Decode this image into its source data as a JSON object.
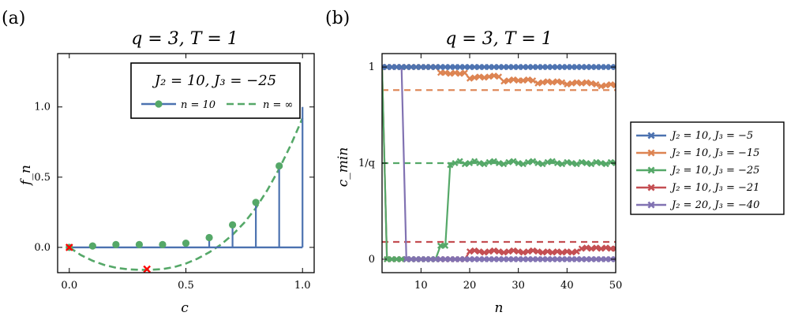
{
  "chart_data": [
    {
      "panel": "(a)",
      "type": "line",
      "title": "q = 3,  T = 1",
      "xlabel": "c",
      "ylabel": "f_n",
      "xlim": [
        -0.05,
        1.05
      ],
      "ylim": [
        -0.18,
        1.38
      ],
      "xticks": [
        "0.0",
        "0.5",
        "1.0"
      ],
      "yticks": [
        "0.0",
        "0.5",
        "1.0"
      ],
      "legend_title": "J₂ = 10,  J₃ = −25",
      "legend_position": "top-right",
      "series": [
        {
          "name": "n = 10",
          "style": "stem",
          "color": "#4C72B0",
          "marker_color": "#55A868",
          "x": [
            0.0,
            0.1,
            0.2,
            0.3,
            0.4,
            0.5,
            0.6,
            0.7,
            0.8,
            0.9,
            1.0
          ],
          "y": [
            0.0,
            0.01,
            0.02,
            0.02,
            0.02,
            0.03,
            0.07,
            0.16,
            0.32,
            0.58,
            1.0
          ]
        },
        {
          "name": "n = ∞",
          "style": "dashed",
          "color": "#55A868",
          "x": [
            0.0,
            0.05,
            0.1,
            0.15,
            0.2,
            0.25,
            0.3,
            0.333,
            0.4,
            0.45,
            0.5,
            0.55,
            0.6,
            0.65,
            0.7,
            0.75,
            0.8,
            0.85,
            0.9,
            0.95,
            1.0
          ],
          "y": [
            0.0,
            -0.055,
            -0.095,
            -0.125,
            -0.145,
            -0.156,
            -0.16,
            -0.161,
            -0.155,
            -0.14,
            -0.115,
            -0.08,
            -0.035,
            0.02,
            0.09,
            0.175,
            0.28,
            0.41,
            0.56,
            0.73,
            0.92
          ]
        }
      ],
      "markers": {
        "color": "#FF0000",
        "points": [
          [
            0.0,
            0.0
          ],
          [
            0.333,
            -0.155
          ]
        ]
      }
    },
    {
      "panel": "(b)",
      "type": "line",
      "title": "q = 3,  T = 1",
      "xlabel": "n",
      "ylabel": "c_min",
      "xlim": [
        2,
        50
      ],
      "ylim": [
        -0.07,
        1.07
      ],
      "xticks": [
        "10",
        "20",
        "30",
        "40",
        "50"
      ],
      "yticks": [
        "0",
        "1/q",
        "1"
      ],
      "legend_position": "outside-right",
      "series": [
        {
          "name": "J₂ = 10,  J₃ = −5",
          "color": "#4C72B0",
          "dashed_level": null,
          "points": [
            [
              2,
              1
            ],
            [
              3,
              1
            ],
            [
              4,
              1
            ],
            [
              5,
              1
            ],
            [
              6,
              1
            ],
            [
              7,
              1
            ],
            [
              8,
              1
            ],
            [
              9,
              1
            ],
            [
              10,
              1
            ],
            [
              11,
              1
            ],
            [
              12,
              1
            ],
            [
              13,
              1
            ],
            [
              14,
              1
            ],
            [
              15,
              1
            ],
            [
              16,
              1
            ],
            [
              17,
              1
            ],
            [
              18,
              1
            ],
            [
              19,
              1
            ],
            [
              20,
              1
            ],
            [
              21,
              1
            ],
            [
              22,
              1
            ],
            [
              23,
              1
            ],
            [
              24,
              1
            ],
            [
              25,
              1
            ],
            [
              26,
              1
            ],
            [
              27,
              1
            ],
            [
              28,
              1
            ],
            [
              29,
              1
            ],
            [
              30,
              1
            ],
            [
              31,
              1
            ],
            [
              32,
              1
            ],
            [
              33,
              1
            ],
            [
              34,
              1
            ],
            [
              35,
              1
            ],
            [
              36,
              1
            ],
            [
              37,
              1
            ],
            [
              38,
              1
            ],
            [
              39,
              1
            ],
            [
              40,
              1
            ],
            [
              41,
              1
            ],
            [
              42,
              1
            ],
            [
              43,
              1
            ],
            [
              44,
              1
            ],
            [
              45,
              1
            ],
            [
              46,
              1
            ],
            [
              47,
              1
            ],
            [
              48,
              1
            ],
            [
              49,
              1
            ],
            [
              50,
              1
            ]
          ]
        },
        {
          "name": "J₂ = 10,  J₃ = −15",
          "color": "#DD8452",
          "dashed_level": 0.88,
          "points": [
            [
              2,
              1
            ],
            [
              3,
              1
            ],
            [
              4,
              1
            ],
            [
              5,
              1
            ],
            [
              6,
              1
            ],
            [
              7,
              1
            ],
            [
              8,
              1
            ],
            [
              9,
              1
            ],
            [
              10,
              1
            ],
            [
              11,
              1
            ],
            [
              12,
              1
            ],
            [
              13,
              1
            ],
            [
              14,
              0.97
            ],
            [
              15,
              0.97
            ],
            [
              16,
              0.965
            ],
            [
              17,
              0.97
            ],
            [
              18,
              0.965
            ],
            [
              19,
              0.97
            ],
            [
              20,
              0.94
            ],
            [
              21,
              0.945
            ],
            [
              22,
              0.95
            ],
            [
              23,
              0.945
            ],
            [
              24,
              0.95
            ],
            [
              25,
              0.955
            ],
            [
              26,
              0.95
            ],
            [
              27,
              0.925
            ],
            [
              28,
              0.93
            ],
            [
              29,
              0.935
            ],
            [
              30,
              0.93
            ],
            [
              31,
              0.93
            ],
            [
              32,
              0.935
            ],
            [
              33,
              0.93
            ],
            [
              34,
              0.915
            ],
            [
              35,
              0.92
            ],
            [
              36,
              0.925
            ],
            [
              37,
              0.92
            ],
            [
              38,
              0.925
            ],
            [
              39,
              0.92
            ],
            [
              40,
              0.91
            ],
            [
              41,
              0.915
            ],
            [
              42,
              0.92
            ],
            [
              43,
              0.915
            ],
            [
              44,
              0.92
            ],
            [
              45,
              0.915
            ],
            [
              46,
              0.91
            ],
            [
              47,
              0.9
            ],
            [
              48,
              0.905
            ],
            [
              49,
              0.91
            ],
            [
              50,
              0.905
            ]
          ]
        },
        {
          "name": "J₂ = 10,  J₃ = −25",
          "color": "#55A868",
          "dashed_level": 0.5,
          "points": [
            [
              2,
              1
            ],
            [
              3,
              0
            ],
            [
              4,
              0
            ],
            [
              5,
              0
            ],
            [
              6,
              0
            ],
            [
              7,
              0
            ],
            [
              8,
              0
            ],
            [
              9,
              0
            ],
            [
              10,
              0
            ],
            [
              11,
              0
            ],
            [
              12,
              0
            ],
            [
              13,
              0
            ],
            [
              14,
              0.07
            ],
            [
              15,
              0.07
            ],
            [
              16,
              0.49
            ],
            [
              17,
              0.5
            ],
            [
              18,
              0.51
            ],
            [
              19,
              0.495
            ],
            [
              20,
              0.5
            ],
            [
              21,
              0.51
            ],
            [
              22,
              0.5
            ],
            [
              23,
              0.495
            ],
            [
              24,
              0.505
            ],
            [
              25,
              0.51
            ],
            [
              26,
              0.5
            ],
            [
              27,
              0.495
            ],
            [
              28,
              0.505
            ],
            [
              29,
              0.51
            ],
            [
              30,
              0.5
            ],
            [
              31,
              0.495
            ],
            [
              32,
              0.505
            ],
            [
              33,
              0.51
            ],
            [
              34,
              0.5
            ],
            [
              35,
              0.495
            ],
            [
              36,
              0.505
            ],
            [
              37,
              0.51
            ],
            [
              38,
              0.5
            ],
            [
              39,
              0.495
            ],
            [
              40,
              0.505
            ],
            [
              41,
              0.5
            ],
            [
              42,
              0.495
            ],
            [
              43,
              0.505
            ],
            [
              44,
              0.5
            ],
            [
              45,
              0.495
            ],
            [
              46,
              0.505
            ],
            [
              47,
              0.5
            ],
            [
              48,
              0.495
            ],
            [
              49,
              0.505
            ],
            [
              50,
              0.5
            ]
          ]
        },
        {
          "name": "J₂ = 10,  J₃ = −21",
          "color": "#C44E52",
          "dashed_level": 0.09,
          "points": [
            [
              2,
              1
            ],
            [
              3,
              0
            ],
            [
              4,
              0
            ],
            [
              5,
              0
            ],
            [
              6,
              0
            ],
            [
              7,
              0
            ],
            [
              8,
              0
            ],
            [
              9,
              0
            ],
            [
              10,
              0
            ],
            [
              11,
              0
            ],
            [
              12,
              0
            ],
            [
              13,
              0
            ],
            [
              14,
              0
            ],
            [
              15,
              0
            ],
            [
              16,
              0
            ],
            [
              17,
              0
            ],
            [
              18,
              0
            ],
            [
              19,
              0
            ],
            [
              20,
              0.04
            ],
            [
              21,
              0.045
            ],
            [
              22,
              0.04
            ],
            [
              23,
              0.035
            ],
            [
              24,
              0.04
            ],
            [
              25,
              0.045
            ],
            [
              26,
              0.04
            ],
            [
              27,
              0.035
            ],
            [
              28,
              0.04
            ],
            [
              29,
              0.045
            ],
            [
              30,
              0.04
            ],
            [
              31,
              0.035
            ],
            [
              32,
              0.04
            ],
            [
              33,
              0.045
            ],
            [
              34,
              0.04
            ],
            [
              35,
              0.035
            ],
            [
              36,
              0.04
            ],
            [
              37,
              0.035
            ],
            [
              38,
              0.04
            ],
            [
              39,
              0.035
            ],
            [
              40,
              0.04
            ],
            [
              41,
              0.035
            ],
            [
              42,
              0.04
            ],
            [
              43,
              0.055
            ],
            [
              44,
              0.06
            ],
            [
              45,
              0.055
            ],
            [
              46,
              0.06
            ],
            [
              47,
              0.055
            ],
            [
              48,
              0.06
            ],
            [
              49,
              0.055
            ],
            [
              50,
              0.055
            ]
          ]
        },
        {
          "name": "J₂ = 20,  J₃ = −40",
          "color": "#8172B2",
          "dashed_level": null,
          "points": [
            [
              2,
              1
            ],
            [
              3,
              1
            ],
            [
              4,
              1
            ],
            [
              5,
              1
            ],
            [
              6,
              1
            ],
            [
              7,
              0
            ],
            [
              8,
              0
            ],
            [
              9,
              0
            ],
            [
              10,
              0
            ],
            [
              11,
              0
            ],
            [
              12,
              0
            ],
            [
              13,
              0
            ],
            [
              14,
              0
            ],
            [
              15,
              0
            ],
            [
              16,
              0
            ],
            [
              17,
              0
            ],
            [
              18,
              0
            ],
            [
              19,
              0
            ],
            [
              20,
              0
            ],
            [
              21,
              0
            ],
            [
              22,
              0
            ],
            [
              23,
              0
            ],
            [
              24,
              0
            ],
            [
              25,
              0
            ],
            [
              26,
              0
            ],
            [
              27,
              0
            ],
            [
              28,
              0
            ],
            [
              29,
              0
            ],
            [
              30,
              0
            ],
            [
              31,
              0
            ],
            [
              32,
              0
            ],
            [
              33,
              0
            ],
            [
              34,
              0
            ],
            [
              35,
              0
            ],
            [
              36,
              0
            ],
            [
              37,
              0
            ],
            [
              38,
              0
            ],
            [
              39,
              0
            ],
            [
              40,
              0
            ],
            [
              41,
              0
            ],
            [
              42,
              0
            ],
            [
              43,
              0
            ],
            [
              44,
              0
            ],
            [
              45,
              0
            ],
            [
              46,
              0
            ],
            [
              47,
              0
            ],
            [
              48,
              0
            ],
            [
              49,
              0
            ],
            [
              50,
              0
            ]
          ]
        }
      ]
    }
  ]
}
